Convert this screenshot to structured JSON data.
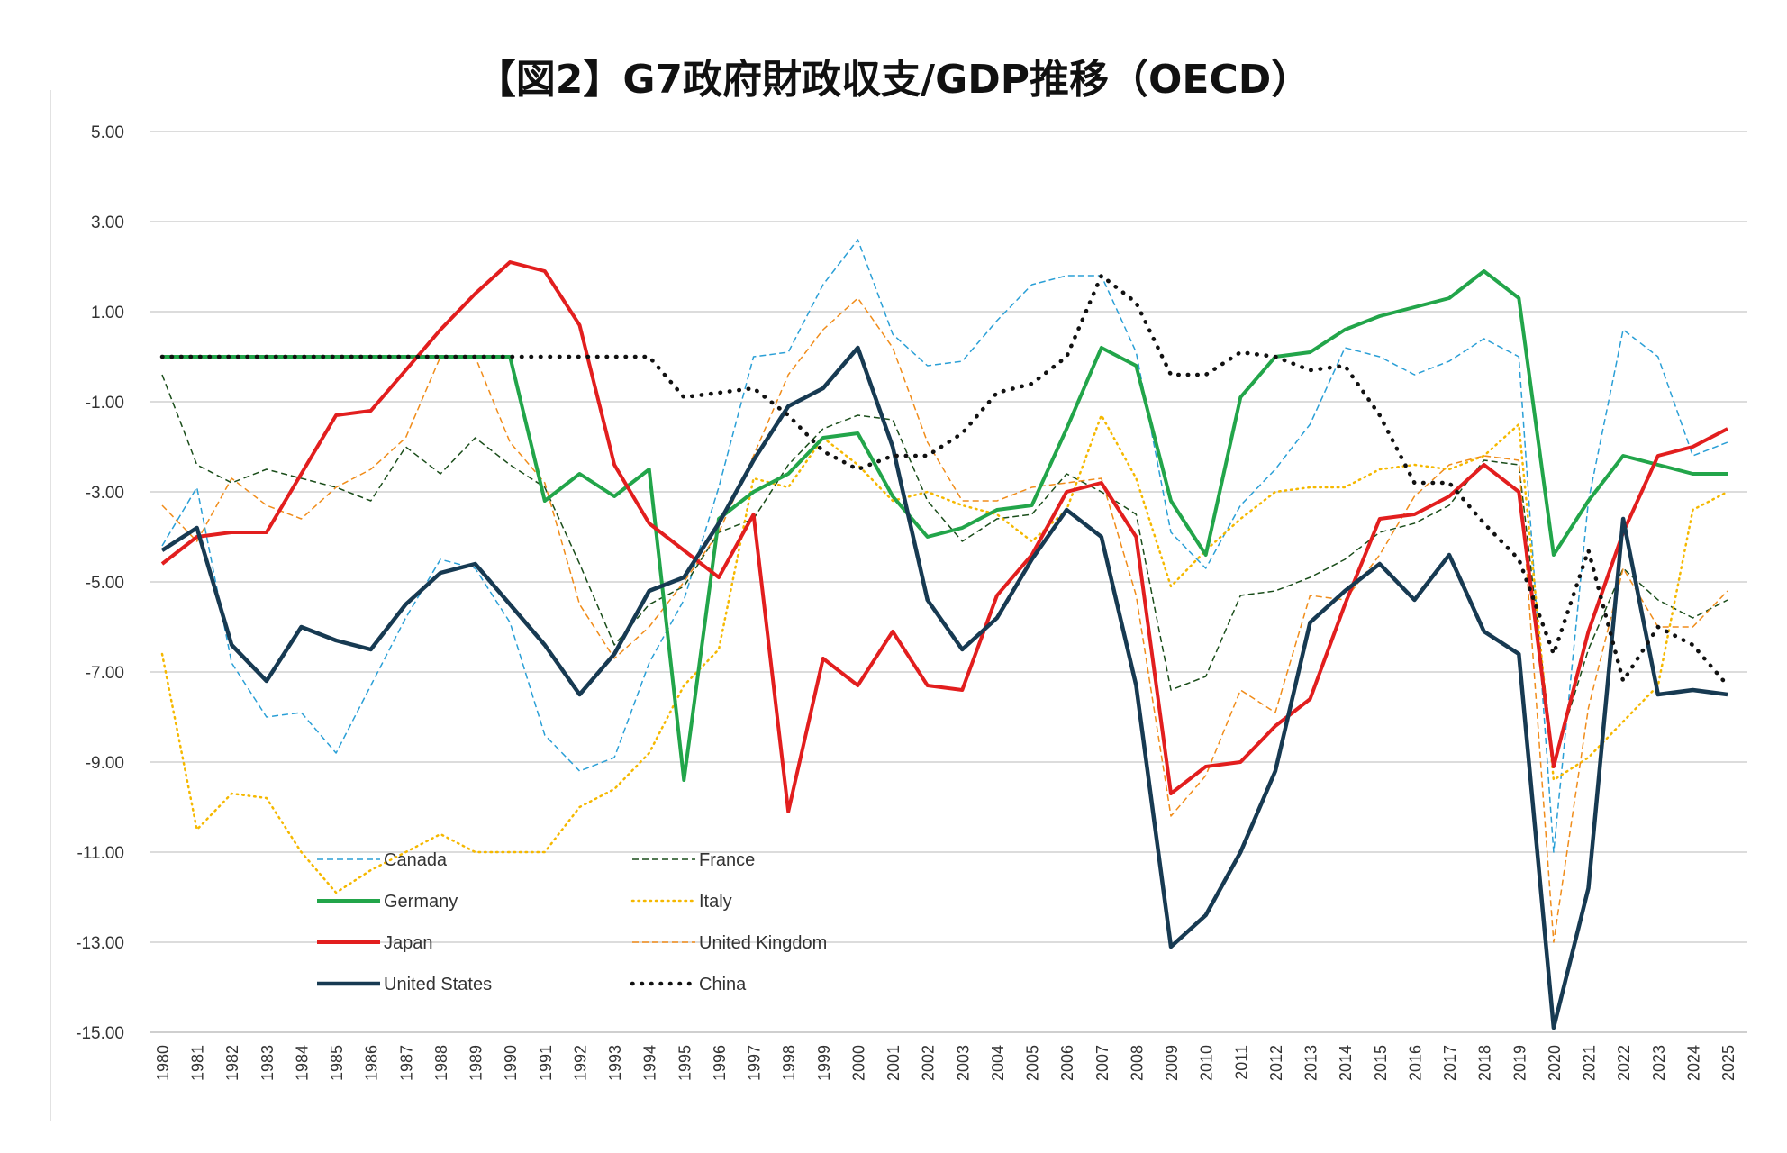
{
  "chart_data": {
    "type": "line",
    "title": "【図2】G7政府財政収支/GDP推移（OECD）",
    "xlabel": "",
    "ylabel": "",
    "ylim": [
      -15,
      5
    ],
    "y_ticks": [
      "5.00",
      "3.00",
      "1.00",
      "-1.00",
      "-3.00",
      "-5.00",
      "-7.00",
      "-9.00",
      "-11.00",
      "-13.00",
      "-15.00"
    ],
    "grid": true,
    "legend_position": "inside-bottom-left",
    "x": [
      "1980",
      "1981",
      "1982",
      "1983",
      "1984",
      "1985",
      "1986",
      "1987",
      "1988",
      "1989",
      "1990",
      "1991",
      "1992",
      "1993",
      "1994",
      "1995",
      "1996",
      "1997",
      "1998",
      "1999",
      "2000",
      "2001",
      "2002",
      "2003",
      "2004",
      "2005",
      "2006",
      "2007",
      "2008",
      "2009",
      "2010",
      "2011",
      "2012",
      "2013",
      "2014",
      "2015",
      "2016",
      "2017",
      "2018",
      "2019",
      "2020",
      "2021",
      "2022",
      "2023",
      "2024",
      "2025"
    ],
    "series": [
      {
        "name": "Canada",
        "color": "#2a9fd6",
        "style": "dashed",
        "width": 1.5,
        "values": [
          -4.2,
          -2.9,
          -6.8,
          -8.0,
          -7.9,
          -8.8,
          -7.3,
          -5.8,
          -4.5,
          -4.7,
          -5.9,
          -8.4,
          -9.2,
          -8.9,
          -6.8,
          -5.4,
          -2.9,
          0.0,
          0.1,
          1.6,
          2.6,
          0.5,
          -0.2,
          -0.1,
          0.8,
          1.6,
          1.8,
          1.8,
          0.1,
          -3.9,
          -4.7,
          -3.3,
          -2.5,
          -1.5,
          0.2,
          0.0,
          -0.4,
          -0.1,
          0.4,
          0.0,
          -11.0,
          -3.2,
          0.6,
          0.0,
          -2.2,
          -1.9
        ]
      },
      {
        "name": "France",
        "color": "#1a4d1a",
        "style": "dashed",
        "width": 1.5,
        "values": [
          -0.4,
          -2.4,
          -2.8,
          -2.5,
          -2.7,
          -2.9,
          -3.2,
          -2.0,
          -2.6,
          -1.8,
          -2.4,
          -2.9,
          -4.6,
          -6.4,
          -5.5,
          -5.1,
          -3.9,
          -3.6,
          -2.4,
          -1.6,
          -1.3,
          -1.4,
          -3.2,
          -4.1,
          -3.6,
          -3.5,
          -2.6,
          -3.0,
          -3.5,
          -7.4,
          -7.1,
          -5.3,
          -5.2,
          -4.9,
          -4.5,
          -3.9,
          -3.7,
          -3.3,
          -2.3,
          -2.4,
          -9.0,
          -6.5,
          -4.7,
          -5.4,
          -5.8,
          -5.4
        ]
      },
      {
        "name": "Germany",
        "color": "#22a54a",
        "style": "solid",
        "width": 4,
        "values": [
          0.0,
          0.0,
          0.0,
          0.0,
          0.0,
          0.0,
          0.0,
          0.0,
          0.0,
          0.0,
          0.0,
          -3.2,
          -2.6,
          -3.1,
          -2.5,
          -9.4,
          -3.6,
          -3.0,
          -2.6,
          -1.8,
          -1.7,
          -3.1,
          -4.0,
          -3.8,
          -3.4,
          -3.3,
          -1.6,
          0.2,
          -0.2,
          -3.2,
          -4.4,
          -0.9,
          0.0,
          0.1,
          0.6,
          0.9,
          1.1,
          1.3,
          1.9,
          1.3,
          -4.4,
          -3.2,
          -2.2,
          -2.4,
          -2.6,
          -2.6
        ]
      },
      {
        "name": "Italy",
        "color": "#f5b800",
        "style": "dotted",
        "width": 2.5,
        "values": [
          -6.6,
          -10.5,
          -9.7,
          -9.8,
          -11.0,
          -11.9,
          -11.4,
          -11.0,
          -10.6,
          -11.0,
          -11.0,
          -11.0,
          -10.0,
          -9.6,
          -8.8,
          -7.3,
          -6.5,
          -2.7,
          -2.9,
          -1.8,
          -2.4,
          -3.2,
          -3.0,
          -3.3,
          -3.5,
          -4.1,
          -3.4,
          -1.3,
          -2.7,
          -5.1,
          -4.3,
          -3.6,
          -3.0,
          -2.9,
          -2.9,
          -2.5,
          -2.4,
          -2.5,
          -2.2,
          -1.5,
          -9.4,
          -8.9,
          -8.1,
          -7.3,
          -3.4,
          -3.0
        ]
      },
      {
        "name": "Japan",
        "color": "#e21e1e",
        "style": "solid",
        "width": 4,
        "values": [
          -4.6,
          -4.0,
          -3.9,
          -3.9,
          -2.6,
          -1.3,
          -1.2,
          -0.3,
          0.6,
          1.4,
          2.1,
          1.9,
          0.7,
          -2.4,
          -3.7,
          -4.3,
          -4.9,
          -3.5,
          -10.1,
          -6.7,
          -7.3,
          -6.1,
          -7.3,
          -7.4,
          -5.3,
          -4.4,
          -3.0,
          -2.8,
          -4.0,
          -9.7,
          -9.1,
          -9.0,
          -8.2,
          -7.6,
          -5.5,
          -3.6,
          -3.5,
          -3.1,
          -2.4,
          -3.0,
          -9.1,
          -6.1,
          -3.9,
          -2.2,
          -2.0,
          -1.6
        ]
      },
      {
        "name": "United Kingdom",
        "color": "#f08c1a",
        "style": "dashed",
        "width": 1.5,
        "values": [
          -3.3,
          -4.1,
          -2.7,
          -3.3,
          -3.6,
          -2.9,
          -2.5,
          -1.8,
          0.0,
          0.0,
          -1.9,
          -2.8,
          -5.5,
          -6.7,
          -6.0,
          -5.0,
          -3.9,
          -2.2,
          -0.4,
          0.6,
          1.3,
          0.2,
          -1.9,
          -3.2,
          -3.2,
          -2.9,
          -2.8,
          -2.7,
          -5.3,
          -10.2,
          -9.3,
          -7.4,
          -7.9,
          -5.3,
          -5.4,
          -4.4,
          -3.1,
          -2.4,
          -2.2,
          -2.3,
          -13.0,
          -7.8,
          -4.7,
          -6.0,
          -6.0,
          -5.2
        ]
      },
      {
        "name": "United States",
        "color": "#173a52",
        "style": "solid",
        "width": 4.5,
        "values": [
          -4.3,
          -3.8,
          -6.4,
          -7.2,
          -6.0,
          -6.3,
          -6.5,
          -5.5,
          -4.8,
          -4.6,
          -5.5,
          -6.4,
          -7.5,
          -6.6,
          -5.2,
          -4.9,
          -3.7,
          -2.3,
          -1.1,
          -0.7,
          0.2,
          -2.0,
          -5.4,
          -6.5,
          -5.8,
          -4.5,
          -3.4,
          -4.0,
          -7.3,
          -13.1,
          -12.4,
          -11.0,
          -9.2,
          -5.9,
          -5.2,
          -4.6,
          -5.4,
          -4.4,
          -6.1,
          -6.6,
          -14.9,
          -11.8,
          -3.6,
          -7.5,
          -7.4,
          -7.5
        ]
      },
      {
        "name": "China",
        "color": "#111111",
        "style": "bigdots",
        "width": 4.5,
        "values": [
          0.0,
          0.0,
          0.0,
          0.0,
          0.0,
          0.0,
          0.0,
          0.0,
          0.0,
          0.0,
          0.0,
          0.0,
          0.0,
          0.0,
          0.0,
          -0.9,
          -0.8,
          -0.7,
          -1.3,
          -2.1,
          -2.5,
          -2.2,
          -2.2,
          -1.7,
          -0.8,
          -0.6,
          0.0,
          1.8,
          1.2,
          -0.4,
          -0.4,
          0.1,
          0.0,
          -0.3,
          -0.2,
          -1.3,
          -2.8,
          -2.8,
          -3.7,
          -4.5,
          -6.6,
          -4.3,
          -7.2,
          -6.0,
          -6.4,
          -7.3
        ]
      }
    ]
  }
}
